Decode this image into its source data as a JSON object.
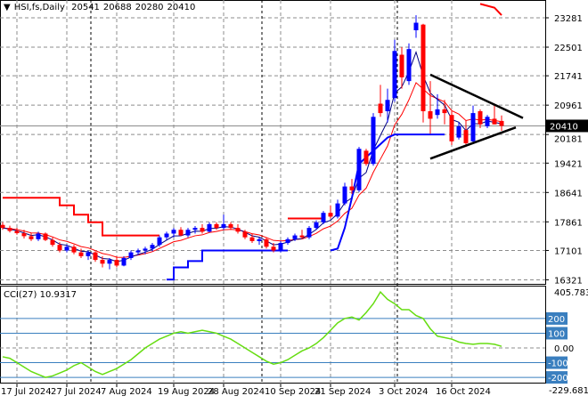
{
  "header": {
    "symbol": "HSI,fs,Daily",
    "open": "20541",
    "high": "20688",
    "low": "20280",
    "close": "20410"
  },
  "colors": {
    "up": "#0000ff",
    "down": "#ff0000",
    "cci": "#66dd11",
    "grid": "#8c8c8c",
    "level": "#3a7fbf"
  },
  "chart_data": [
    {
      "type": "candlestick",
      "title": "HSI,fs,Daily",
      "price_ticks": [
        23281,
        22501,
        21741,
        20961,
        20181,
        19421,
        18641,
        17861,
        17101,
        16321
      ],
      "current_price": 20410,
      "ylim": [
        16221,
        23700
      ],
      "date_ticks": [
        {
          "label": "17 Jul 2024",
          "bar": 2
        },
        {
          "label": "27 Jul 2024",
          "bar": 9
        },
        {
          "label": "7 Aug 2024",
          "bar": 16
        },
        {
          "label": "19 Aug 2024",
          "bar": 24
        },
        {
          "label": "28 Aug 2024",
          "bar": 31
        },
        {
          "label": "10 Sep 2024",
          "bar": 39
        },
        {
          "label": "21 Sep 2024",
          "bar": 46
        },
        {
          "label": "3 Oct 2024",
          "bar": 55
        },
        {
          "label": "16 Oct 2024",
          "bar": 63
        }
      ],
      "separators": [
        12,
        36,
        55
      ],
      "ohlc": [
        [
          17780,
          17850,
          17650,
          17700
        ],
        [
          17700,
          17760,
          17580,
          17620
        ],
        [
          17620,
          17700,
          17520,
          17560
        ],
        [
          17560,
          17650,
          17420,
          17480
        ],
        [
          17480,
          17560,
          17350,
          17400
        ],
        [
          17400,
          17600,
          17350,
          17550
        ],
        [
          17550,
          17580,
          17350,
          17380
        ],
        [
          17380,
          17450,
          17200,
          17250
        ],
        [
          17250,
          17320,
          17050,
          17100
        ],
        [
          17100,
          17260,
          17050,
          17200
        ],
        [
          17200,
          17250,
          17000,
          17050
        ],
        [
          17050,
          17150,
          16900,
          16950
        ],
        [
          16950,
          17100,
          16850,
          17050
        ],
        [
          17050,
          17080,
          16800,
          16850
        ],
        [
          16850,
          16950,
          16650,
          16750
        ],
        [
          16750,
          16900,
          16600,
          16850
        ],
        [
          16850,
          16950,
          16650,
          16700
        ],
        [
          16700,
          16950,
          16680,
          16900
        ],
        [
          16900,
          17100,
          16850,
          17050
        ],
        [
          17050,
          17150,
          16980,
          17100
        ],
        [
          17100,
          17200,
          17000,
          17150
        ],
        [
          17150,
          17300,
          17080,
          17250
        ],
        [
          17250,
          17500,
          17200,
          17450
        ],
        [
          17450,
          17600,
          17380,
          17550
        ],
        [
          17550,
          17700,
          17450,
          17650
        ],
        [
          17650,
          17720,
          17480,
          17500
        ],
        [
          17500,
          17700,
          17450,
          17650
        ],
        [
          17650,
          17750,
          17550,
          17700
        ],
        [
          17700,
          17800,
          17550,
          17600
        ],
        [
          17600,
          17850,
          17580,
          17800
        ],
        [
          17800,
          17850,
          17650,
          17700
        ],
        [
          17700,
          18050,
          17650,
          17800
        ],
        [
          17800,
          17850,
          17650,
          17700
        ],
        [
          17700,
          17800,
          17550,
          17600
        ],
        [
          17600,
          17650,
          17400,
          17450
        ],
        [
          17450,
          17550,
          17300,
          17350
        ],
        [
          17350,
          17450,
          17250,
          17400
        ],
        [
          17400,
          17450,
          17150,
          17200
        ],
        [
          17200,
          17300,
          17050,
          17100
        ],
        [
          17100,
          17350,
          17050,
          17300
        ],
        [
          17300,
          17450,
          17250,
          17400
        ],
        [
          17400,
          17550,
          17350,
          17500
        ],
        [
          17500,
          17650,
          17400,
          17450
        ],
        [
          17450,
          17750,
          17400,
          17700
        ],
        [
          17700,
          17900,
          17650,
          17850
        ],
        [
          17850,
          18150,
          17800,
          18100
        ],
        [
          18100,
          18300,
          17950,
          18000
        ],
        [
          18000,
          18450,
          17950,
          18350
        ],
        [
          18350,
          18900,
          18300,
          18800
        ],
        [
          18800,
          19000,
          18600,
          18700
        ],
        [
          18700,
          19850,
          18650,
          19800
        ],
        [
          19750,
          19800,
          19350,
          19400
        ],
        [
          19400,
          20750,
          19350,
          20650
        ],
        [
          21000,
          21500,
          20650,
          20750
        ],
        [
          20800,
          21400,
          20500,
          21100
        ],
        [
          21150,
          22700,
          21050,
          22400
        ],
        [
          22300,
          22500,
          21400,
          21700
        ],
        [
          21600,
          22600,
          21500,
          22450
        ],
        [
          22950,
          23350,
          22750,
          23150
        ],
        [
          23100,
          23120,
          20500,
          20800
        ],
        [
          20800,
          21600,
          20200,
          20600
        ],
        [
          20700,
          21250,
          20600,
          20850
        ],
        [
          20850,
          21100,
          20450,
          20750
        ],
        [
          20700,
          20800,
          19900,
          20000
        ],
        [
          20100,
          20500,
          20050,
          20400
        ],
        [
          20300,
          20550,
          19850,
          19950
        ],
        [
          20000,
          20950,
          19950,
          20750
        ],
        [
          20800,
          20850,
          20350,
          20450
        ],
        [
          20400,
          20700,
          20350,
          20650
        ],
        [
          20600,
          20950,
          20450,
          20450
        ],
        [
          20541,
          20688,
          20280,
          20410
        ]
      ],
      "red_step": [
        [
          0,
          18500
        ],
        [
          8,
          18500
        ],
        [
          8,
          18300
        ],
        [
          10,
          18300
        ],
        [
          10,
          18050
        ],
        [
          12,
          18050
        ],
        [
          12,
          17850
        ],
        [
          14,
          17850
        ],
        [
          14,
          17500
        ],
        [
          22,
          17500
        ],
        [
          40,
          null
        ],
        [
          40,
          17950
        ],
        [
          45,
          17950
        ],
        [
          67,
          null
        ],
        [
          67,
          23650
        ],
        [
          69,
          23550
        ],
        [
          70,
          23350
        ]
      ],
      "blue_step": [
        [
          23,
          16330
        ],
        [
          24,
          16330
        ],
        [
          24,
          16650
        ],
        [
          26,
          16650
        ],
        [
          26,
          16820
        ],
        [
          28,
          16820
        ],
        [
          28,
          17100
        ],
        [
          40,
          17100
        ],
        [
          46,
          null
        ],
        [
          46,
          17100
        ],
        [
          47,
          17150
        ],
        [
          48,
          17700
        ],
        [
          49,
          18500
        ],
        [
          50,
          19400
        ],
        [
          54,
          20100
        ],
        [
          55,
          20181
        ],
        [
          62,
          20181
        ]
      ],
      "triangle": [
        {
          "from": [
            60,
            21770
          ],
          "to": [
            73,
            20620
          ]
        },
        {
          "from": [
            60,
            19540
          ],
          "to": [
            72,
            20370
          ]
        }
      ],
      "ma_fast_period": 4,
      "ma_slow_period": 8
    },
    {
      "type": "line",
      "title": "CCI(27) 10.9317",
      "label": "CCI(27)",
      "last_value": "10.9317",
      "ylim": [
        -229.6813,
        405.7837
      ],
      "max_label": "405.7837",
      "min_label": "-229.6813",
      "levels": [
        200,
        100,
        -100,
        -200
      ],
      "zero_label": "0.00",
      "values": [
        -60,
        -70,
        -100,
        -130,
        -160,
        -180,
        -200,
        -190,
        -170,
        -150,
        -120,
        -100,
        -130,
        -160,
        -180,
        -160,
        -140,
        -110,
        -80,
        -40,
        0,
        30,
        60,
        80,
        100,
        110,
        100,
        110,
        120,
        110,
        100,
        80,
        60,
        30,
        0,
        -30,
        -60,
        -90,
        -110,
        -100,
        -80,
        -50,
        -20,
        0,
        30,
        70,
        120,
        170,
        200,
        210,
        190,
        240,
        300,
        380,
        330,
        300,
        260,
        260,
        220,
        200,
        130,
        80,
        70,
        60,
        40,
        30,
        25,
        30,
        30,
        25,
        11
      ]
    }
  ]
}
